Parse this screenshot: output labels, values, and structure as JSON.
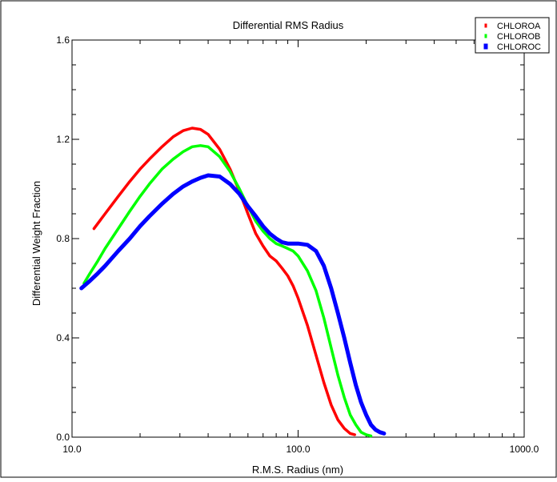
{
  "chart_data": {
    "type": "line",
    "title": "Differential RMS Radius",
    "xlabel": "R.M.S. Radius (nm)",
    "ylabel": "Differential Weight Fraction",
    "xscale": "log",
    "xlim": [
      10,
      1000
    ],
    "ylim": [
      0,
      1.6
    ],
    "x_ticks": [
      10,
      100,
      1000
    ],
    "x_tick_labels": [
      "10.0",
      "100.0",
      "1000.0"
    ],
    "y_ticks": [
      0,
      0.4,
      0.8,
      1.2,
      1.6
    ],
    "y_tick_labels": [
      "0.0",
      "0.4",
      "0.8",
      "1.2",
      "1.6"
    ],
    "grid": false,
    "legend_position": "top-right",
    "series": [
      {
        "name": "CHLOROA",
        "color": "#ff0000",
        "x": [
          12.5,
          14,
          16,
          18,
          20,
          22,
          25,
          28,
          31,
          34,
          37,
          40,
          45,
          50,
          55,
          60,
          65,
          70,
          75,
          80,
          85,
          90,
          95,
          100,
          110,
          120,
          130,
          140,
          150,
          160,
          170,
          178
        ],
        "y": [
          0.84,
          0.9,
          0.97,
          1.03,
          1.08,
          1.12,
          1.17,
          1.21,
          1.235,
          1.245,
          1.24,
          1.22,
          1.16,
          1.08,
          0.99,
          0.9,
          0.82,
          0.77,
          0.73,
          0.71,
          0.68,
          0.65,
          0.61,
          0.56,
          0.45,
          0.33,
          0.22,
          0.13,
          0.07,
          0.035,
          0.015,
          0.01
        ]
      },
      {
        "name": "CHLOROB",
        "color": "#00ff00",
        "x": [
          11.3,
          12,
          13,
          14,
          16,
          18,
          20,
          22,
          25,
          28,
          31,
          34,
          37,
          40,
          45,
          50,
          55,
          60,
          65,
          70,
          75,
          80,
          85,
          90,
          95,
          100,
          110,
          120,
          130,
          140,
          150,
          160,
          170,
          180,
          190,
          200,
          210
        ],
        "y": [
          0.62,
          0.66,
          0.71,
          0.76,
          0.84,
          0.91,
          0.97,
          1.02,
          1.08,
          1.12,
          1.15,
          1.17,
          1.175,
          1.17,
          1.13,
          1.07,
          1.0,
          0.93,
          0.87,
          0.83,
          0.8,
          0.78,
          0.77,
          0.76,
          0.75,
          0.73,
          0.67,
          0.59,
          0.48,
          0.36,
          0.25,
          0.16,
          0.09,
          0.05,
          0.02,
          0.01,
          0.005
        ]
      },
      {
        "name": "CHLOROC",
        "color": "#0000ff",
        "x": [
          11,
          12,
          13,
          14,
          16,
          18,
          20,
          22,
          25,
          28,
          31,
          34,
          37,
          40,
          45,
          50,
          55,
          60,
          65,
          70,
          75,
          80,
          85,
          90,
          95,
          100,
          110,
          120,
          130,
          140,
          150,
          160,
          170,
          180,
          190,
          200,
          210,
          220,
          230,
          240
        ],
        "y": [
          0.6,
          0.63,
          0.66,
          0.69,
          0.75,
          0.8,
          0.85,
          0.89,
          0.94,
          0.98,
          1.01,
          1.03,
          1.045,
          1.055,
          1.05,
          1.02,
          0.98,
          0.93,
          0.89,
          0.85,
          0.82,
          0.8,
          0.785,
          0.78,
          0.78,
          0.78,
          0.775,
          0.75,
          0.69,
          0.6,
          0.5,
          0.4,
          0.3,
          0.21,
          0.14,
          0.09,
          0.05,
          0.03,
          0.02,
          0.015
        ]
      }
    ]
  }
}
